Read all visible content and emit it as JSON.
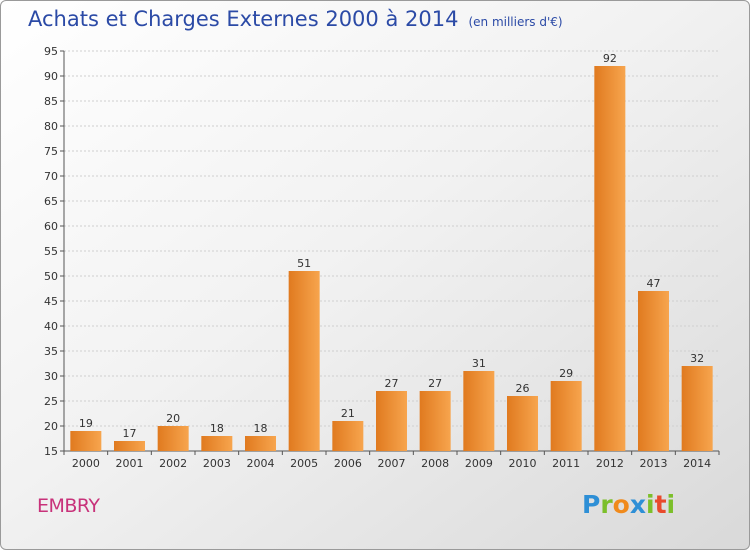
{
  "title": "Achats et Charges Externes 2000 à 2014",
  "subtitle": "(en milliers d'€)",
  "commune": "EMBRY",
  "logo": {
    "text": "Proxiti",
    "letters": [
      {
        "ch": "P",
        "color": "#2e8fd6"
      },
      {
        "ch": "r",
        "color": "#7cbf2a"
      },
      {
        "ch": "o",
        "color": "#f08a1c"
      },
      {
        "ch": "x",
        "color": "#2e8fd6"
      },
      {
        "ch": "i",
        "color": "#7cbf2a"
      },
      {
        "ch": "t",
        "color": "#e94a2c"
      },
      {
        "ch": "i",
        "color": "#7cbf2a"
      }
    ]
  },
  "colors": {
    "bar_light": "#f7a54e",
    "bar_dark": "#e07a1f",
    "title": "#2b4aa6",
    "commune": "#c8327a"
  },
  "chart_data": {
    "type": "bar",
    "categories": [
      "2000",
      "2001",
      "2002",
      "2003",
      "2004",
      "2005",
      "2006",
      "2007",
      "2008",
      "2009",
      "2010",
      "2011",
      "2012",
      "2013",
      "2014"
    ],
    "values": [
      19,
      17,
      20,
      18,
      18,
      51,
      21,
      27,
      27,
      31,
      26,
      29,
      92,
      47,
      32
    ],
    "ylim": [
      15,
      95
    ],
    "yticks": [
      15,
      20,
      25,
      30,
      35,
      40,
      45,
      50,
      55,
      60,
      65,
      70,
      75,
      80,
      85,
      90,
      95
    ],
    "grid": true,
    "data_labels": true,
    "xlabel": "",
    "ylabel": ""
  }
}
